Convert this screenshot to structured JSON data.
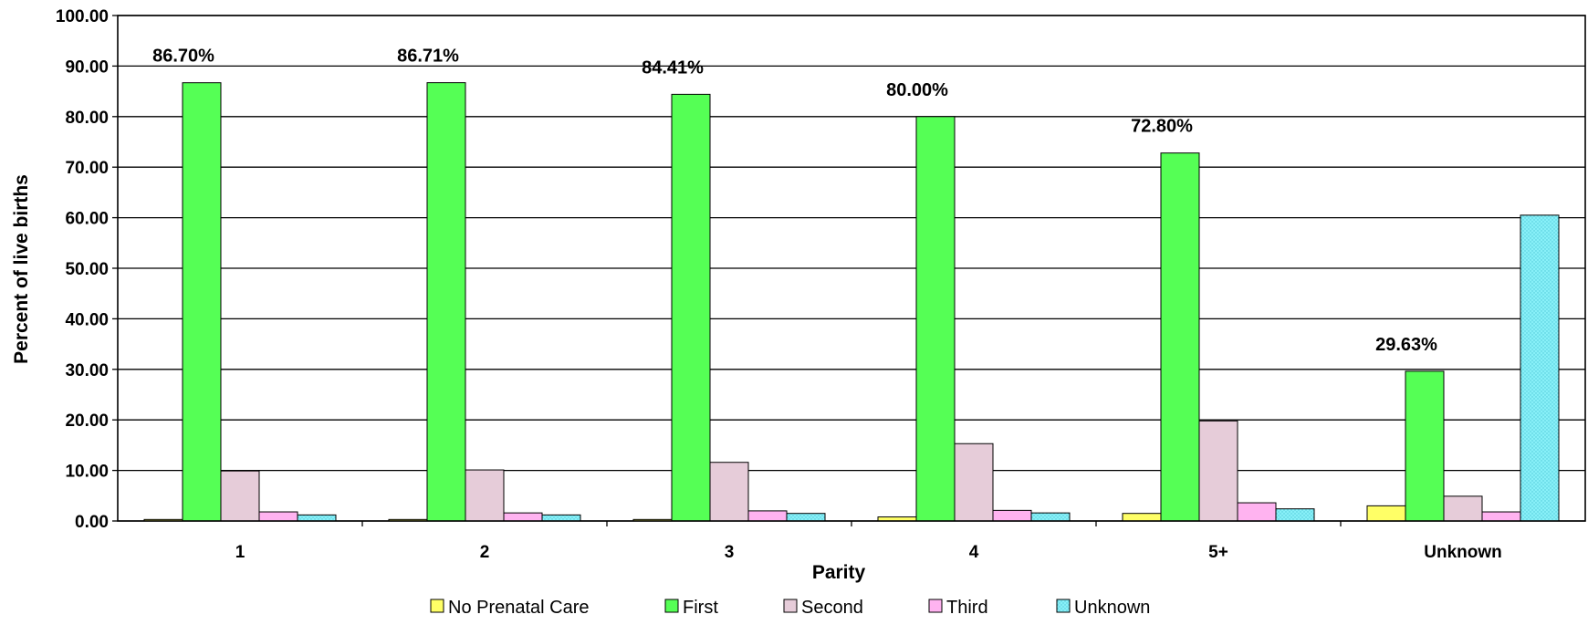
{
  "chart_data": {
    "type": "bar",
    "xlabel": "Parity",
    "ylabel": "Percent of live births",
    "ylim": [
      0,
      100
    ],
    "y_tick_labels": [
      "0.00",
      "10.00",
      "20.00",
      "30.00",
      "40.00",
      "50.00",
      "60.00",
      "70.00",
      "80.00",
      "90.00",
      "100.00"
    ],
    "grid": true,
    "legend_position": "bottom",
    "categories": [
      "1",
      "2",
      "3",
      "4",
      "5+",
      "Unknown"
    ],
    "series": [
      {
        "name": "No Prenatal Care",
        "color": "#ffff66",
        "values": [
          0.3,
          0.3,
          0.3,
          0.8,
          1.5,
          3.0
        ]
      },
      {
        "name": "First",
        "color": "#55ff55",
        "values": [
          86.7,
          86.71,
          84.41,
          80.0,
          72.8,
          29.63
        ]
      },
      {
        "name": "Second",
        "color": "#e6ccd9",
        "values": [
          9.9,
          10.1,
          11.6,
          15.3,
          19.8,
          4.9
        ]
      },
      {
        "name": "Third",
        "color": "#ffb3f0",
        "values": [
          1.8,
          1.6,
          2.0,
          2.1,
          3.6,
          1.8
        ]
      },
      {
        "name": "Unknown",
        "color": "#88f0f8",
        "pattern": "dotted",
        "values": [
          1.2,
          1.2,
          1.5,
          1.6,
          2.4,
          60.5
        ]
      }
    ],
    "annotations": {
      "series": "First",
      "labels": [
        "86.70%",
        "86.71%",
        "84.41%",
        "80.00%",
        "72.80%",
        "29.63%"
      ]
    }
  }
}
